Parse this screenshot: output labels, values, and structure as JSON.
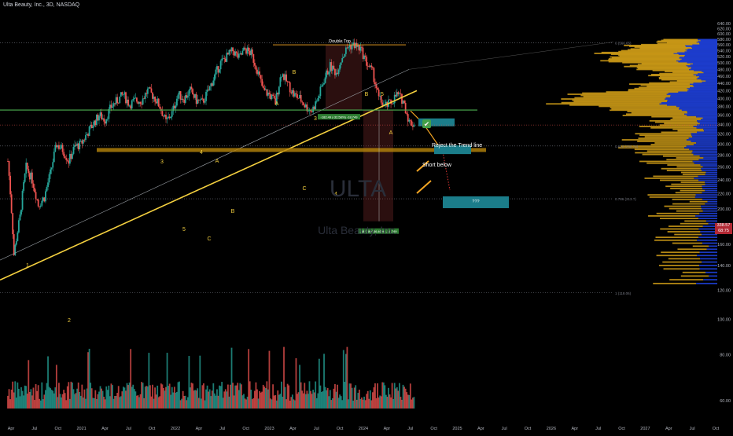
{
  "header": {
    "symbol_line": "Ulta Beauty, Inc., 3D, NASDAQ"
  },
  "watermark": {
    "ticker": "ULTA",
    "name": "Ulta Beauty, Inc."
  },
  "price_badge": {
    "price": "338.57",
    "sub": "68:75"
  },
  "colors": {
    "background": "#000000",
    "bull_candle": "#26a69a",
    "bear_candle": "#ef5350",
    "trendline": "#f4d03f",
    "horizontal_support": "#4caf50",
    "projection_arrow": "#f5a623",
    "target_box": "#1b7d8a",
    "volume_profile_blue": "#1e3fd6",
    "volume_profile_gold": "#d4a017"
  },
  "annotations": {
    "double_top": "Double Top",
    "reject": "Reject the Trend line",
    "short_below": "Short below",
    "measure_top": "-182.49 (-32.58%) -18,749",
    "measure_bottom": "-187.49 (-36.40%) -18,749",
    "target_label": "???",
    "check": "✔",
    "fib_top": "0 (566.65)",
    "fib_mid": "0.618 (296.74)",
    "fib_low1": "0.786 (213.?)",
    "fib_low2": "1 (118.06)"
  },
  "wave_labels": [
    "1",
    "2",
    "3",
    "4",
    "5",
    "A",
    "B",
    "C",
    "A",
    "B",
    "C",
    "3",
    "4",
    "5",
    "A",
    "B"
  ],
  "chart_data": {
    "type": "candlestick",
    "title": "Ulta Beauty, Inc., 3D, NASDAQ",
    "y_axis": {
      "scale": "log",
      "ylim": [
        55,
        660
      ],
      "tick_labels": [
        "640.00",
        "620.00",
        "600.00",
        "580.00",
        "560.00",
        "540.00",
        "520.00",
        "500.00",
        "480.00",
        "460.00",
        "440.00",
        "420.00",
        "400.00",
        "380.00",
        "360.00",
        "340.00",
        "320.00",
        "300.00",
        "280.00",
        "260.00",
        "240.00",
        "220.00",
        "200.00",
        "180.00",
        "160.00",
        "140.00",
        "120.00",
        "100.00",
        "80.00",
        "60.00"
      ]
    },
    "x_axis": {
      "tick_labels": [
        "Apr",
        "Jul",
        "Oct",
        "2021",
        "Apr",
        "Jul",
        "Oct",
        "2022",
        "Apr",
        "Jul",
        "Oct",
        "2023",
        "Apr",
        "Jul",
        "Oct",
        "2024",
        "Apr",
        "Jul",
        "Oct",
        "2025",
        "Apr",
        "Jul",
        "Oct",
        "2026",
        "Apr",
        "Jul",
        "Oct",
        "2027",
        "Apr",
        "Jul",
        "Oct"
      ]
    },
    "key_levels": {
      "double_top": 560,
      "neckline": 372,
      "last_price": 338.57,
      "fib_0618": 296.74,
      "target_zone": 210
    },
    "price_path": [
      [
        0,
        270
      ],
      [
        0.05,
        150
      ],
      [
        0.1,
        190
      ],
      [
        0.15,
        260
      ],
      [
        0.2,
        240
      ],
      [
        0.25,
        205
      ],
      [
        0.3,
        215
      ],
      [
        0.35,
        250
      ],
      [
        0.4,
        300
      ],
      [
        0.45,
        290
      ],
      [
        0.5,
        270
      ],
      [
        0.55,
        295
      ],
      [
        0.6,
        300
      ],
      [
        0.65,
        320
      ],
      [
        0.7,
        340
      ],
      [
        0.75,
        360
      ],
      [
        0.8,
        350
      ],
      [
        0.85,
        380
      ],
      [
        0.9,
        395
      ],
      [
        0.95,
        410
      ],
      [
        1.0,
        385
      ],
      [
        1.05,
        395
      ],
      [
        1.1,
        395
      ],
      [
        1.15,
        420
      ],
      [
        1.2,
        405
      ],
      [
        1.25,
        380
      ],
      [
        1.3,
        345
      ],
      [
        1.35,
        365
      ],
      [
        1.4,
        410
      ],
      [
        1.45,
        400
      ],
      [
        1.5,
        420
      ],
      [
        1.55,
        395
      ],
      [
        1.6,
        390
      ],
      [
        1.65,
        420
      ],
      [
        1.7,
        460
      ],
      [
        1.75,
        500
      ],
      [
        1.8,
        520
      ],
      [
        1.85,
        540
      ],
      [
        1.9,
        515
      ],
      [
        1.95,
        545
      ],
      [
        2.0,
        530
      ],
      [
        2.05,
        480
      ],
      [
        2.1,
        420
      ],
      [
        2.15,
        410
      ],
      [
        2.2,
        390
      ],
      [
        2.25,
        470
      ],
      [
        2.3,
        440
      ],
      [
        2.35,
        410
      ],
      [
        2.4,
        400
      ],
      [
        2.45,
        380
      ],
      [
        2.5,
        370
      ],
      [
        2.55,
        400
      ],
      [
        2.6,
        450
      ],
      [
        2.65,
        490
      ],
      [
        2.7,
        470
      ],
      [
        2.75,
        520
      ],
      [
        2.8,
        555
      ],
      [
        2.85,
        560
      ],
      [
        2.9,
        545
      ],
      [
        2.95,
        500
      ],
      [
        3.0,
        470
      ],
      [
        3.05,
        400
      ],
      [
        3.1,
        380
      ],
      [
        3.15,
        390
      ],
      [
        3.2,
        410
      ],
      [
        3.25,
        395
      ],
      [
        3.3,
        345
      ],
      [
        3.35,
        338.57
      ]
    ]
  }
}
